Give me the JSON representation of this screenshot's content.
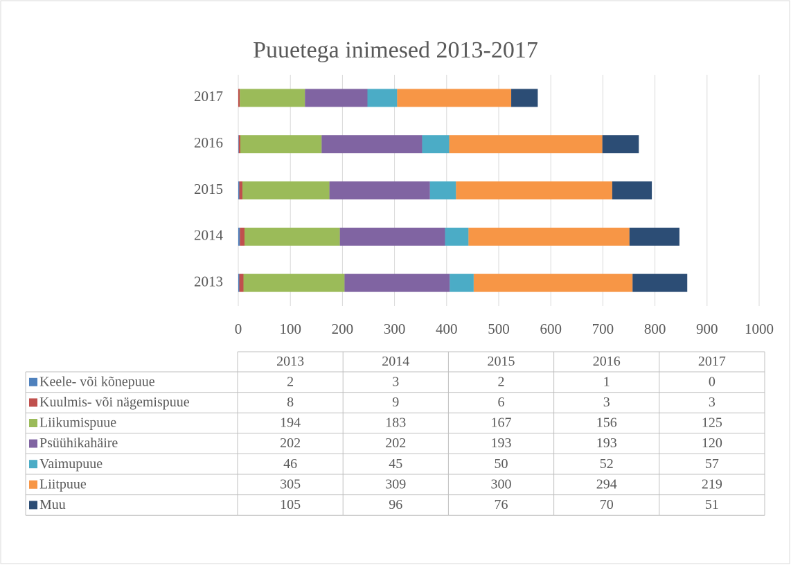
{
  "chart_data": {
    "type": "bar",
    "orientation": "horizontal",
    "stacked": true,
    "title": "Puuetega inimesed 2013-2017",
    "categories": [
      "2013",
      "2014",
      "2015",
      "2016",
      "2017"
    ],
    "series": [
      {
        "name": "Keele- või kõnepuue",
        "color": "#4f81bd",
        "values": [
          2,
          3,
          2,
          1,
          0
        ]
      },
      {
        "name": "Kuulmis- või nägemispuue",
        "color": "#c0504d",
        "values": [
          8,
          9,
          6,
          3,
          3
        ]
      },
      {
        "name": "Liikumispuue",
        "color": "#9bbb59",
        "values": [
          194,
          183,
          167,
          156,
          125
        ]
      },
      {
        "name": "Psüühikahäire",
        "color": "#8064a2",
        "values": [
          202,
          202,
          193,
          193,
          120
        ]
      },
      {
        "name": "Vaimupuue",
        "color": "#4bacc6",
        "values": [
          46,
          45,
          50,
          52,
          57
        ]
      },
      {
        "name": "Liitpuue",
        "color": "#f79646",
        "values": [
          305,
          309,
          300,
          294,
          219
        ]
      },
      {
        "name": "Muu",
        "color": "#2c4d75",
        "values": [
          105,
          96,
          76,
          70,
          51
        ]
      }
    ],
    "xlim": [
      0,
      1000
    ],
    "xticks": [
      0,
      100,
      200,
      300,
      400,
      500,
      600,
      700,
      800,
      900,
      1000
    ],
    "grid": true
  }
}
